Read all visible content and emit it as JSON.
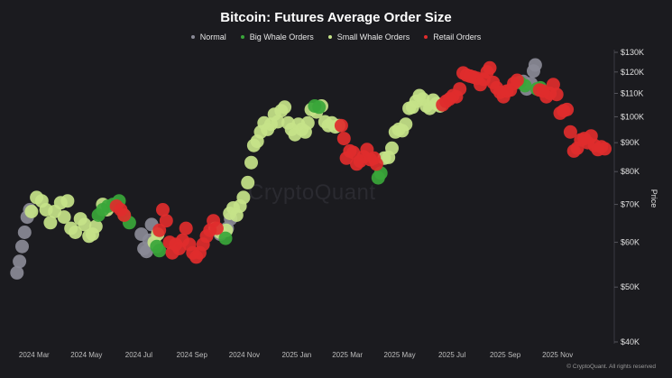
{
  "chart_data": {
    "type": "scatter",
    "title": "Bitcoin: Futures Average Order Size",
    "ylabel": "Price",
    "y_scale": "log",
    "ylim": [
      40000,
      130000
    ],
    "y_ticks": [
      40000,
      50000,
      60000,
      70000,
      80000,
      90000,
      100000,
      110000,
      120000,
      130000
    ],
    "y_tick_labels": [
      "$40K",
      "$50K",
      "$60K",
      "$70K",
      "$80K",
      "$90K",
      "$100K",
      "$110K",
      "$120K",
      "$130K"
    ],
    "xlim": [
      "2024-02-05",
      "2026-01-05"
    ],
    "x_ticks": [
      "2024-03-01",
      "2024-05-01",
      "2024-07-01",
      "2024-09-01",
      "2024-11-01",
      "2025-01-01",
      "2025-03-01",
      "2025-05-01",
      "2025-07-01",
      "2025-09-01",
      "2025-11-01"
    ],
    "x_tick_labels": [
      "2024 Mar",
      "2024 May",
      "2024 Jul",
      "2024 Sep",
      "2024 Nov",
      "2025 Jan",
      "2025 Mar",
      "2025 May",
      "2025 Jul",
      "2025 Sep",
      "2025 Nov"
    ],
    "grid": false,
    "legend_position": "top-center",
    "series": [
      {
        "name": "Normal",
        "color": "#8a8a96",
        "points": [
          [
            "2024-02-10",
            53000
          ],
          [
            "2024-02-13",
            55500
          ],
          [
            "2024-02-16",
            59000
          ],
          [
            "2024-02-19",
            62500
          ],
          [
            "2024-02-22",
            66500
          ],
          [
            "2024-02-25",
            68500
          ],
          [
            "2024-07-04",
            62000
          ],
          [
            "2024-07-07",
            58500
          ],
          [
            "2024-07-10",
            57800
          ],
          [
            "2024-07-13",
            60500
          ],
          [
            "2024-07-16",
            64500
          ],
          [
            "2024-10-04",
            62000
          ],
          [
            "2024-10-08",
            62800
          ],
          [
            "2024-10-12",
            63500
          ],
          [
            "2024-10-16",
            66000
          ],
          [
            "2025-09-22",
            115500
          ],
          [
            "2025-09-26",
            112000
          ],
          [
            "2025-10-01",
            114500
          ],
          [
            "2025-10-04",
            120500
          ],
          [
            "2025-10-06",
            123500
          ]
        ]
      },
      {
        "name": "Big Whale Orders",
        "color": "#3aa63a",
        "points": [
          [
            "2024-05-15",
            67000
          ],
          [
            "2024-05-20",
            68500
          ],
          [
            "2024-05-26",
            69500
          ],
          [
            "2024-06-01",
            70000
          ],
          [
            "2024-06-08",
            71000
          ],
          [
            "2024-06-14",
            67000
          ],
          [
            "2024-06-20",
            65000
          ],
          [
            "2024-07-22",
            59000
          ],
          [
            "2024-07-25",
            58000
          ],
          [
            "2024-10-10",
            61000
          ],
          [
            "2025-01-22",
            104500
          ],
          [
            "2025-01-27",
            104000
          ],
          [
            "2025-04-06",
            78000
          ],
          [
            "2025-04-09",
            79500
          ],
          [
            "2025-09-18",
            115000
          ],
          [
            "2025-09-24",
            113500
          ],
          [
            "2025-10-08",
            112000
          ],
          [
            "2025-10-12",
            112500
          ]
        ]
      },
      {
        "name": "Small Whale Orders",
        "color": "#c5e389",
        "points": [
          [
            "2024-02-27",
            68000
          ],
          [
            "2024-03-04",
            72000
          ],
          [
            "2024-03-10",
            71000
          ],
          [
            "2024-03-15",
            68500
          ],
          [
            "2024-03-20",
            65000
          ],
          [
            "2024-03-25",
            68000
          ],
          [
            "2024-04-01",
            70500
          ],
          [
            "2024-04-05",
            66500
          ],
          [
            "2024-04-09",
            71000
          ],
          [
            "2024-04-13",
            63500
          ],
          [
            "2024-04-18",
            62500
          ],
          [
            "2024-04-24",
            66000
          ],
          [
            "2024-04-29",
            64500
          ],
          [
            "2024-05-04",
            61500
          ],
          [
            "2024-05-08",
            62000
          ],
          [
            "2024-05-12",
            64000
          ],
          [
            "2024-05-20",
            70000
          ],
          [
            "2024-05-25",
            68500
          ],
          [
            "2024-07-19",
            60000
          ],
          [
            "2024-07-23",
            62000
          ],
          [
            "2024-09-28",
            63500
          ],
          [
            "2024-10-04",
            62500
          ],
          [
            "2024-10-11",
            63000
          ],
          [
            "2024-10-15",
            67500
          ],
          [
            "2024-10-19",
            69000
          ],
          [
            "2024-10-23",
            67000
          ],
          [
            "2024-10-27",
            69500
          ],
          [
            "2024-10-31",
            72000
          ],
          [
            "2024-11-05",
            76500
          ],
          [
            "2024-11-09",
            83000
          ],
          [
            "2024-11-12",
            89000
          ],
          [
            "2024-11-16",
            90500
          ],
          [
            "2024-11-20",
            94000
          ],
          [
            "2024-11-24",
            97500
          ],
          [
            "2024-11-28",
            95000
          ],
          [
            "2024-12-02",
            97000
          ],
          [
            "2024-12-06",
            101000
          ],
          [
            "2024-12-10",
            98000
          ],
          [
            "2024-12-14",
            102500
          ],
          [
            "2024-12-18",
            104000
          ],
          [
            "2024-12-22",
            97500
          ],
          [
            "2024-12-26",
            95000
          ],
          [
            "2024-12-30",
            93000
          ],
          [
            "2025-01-03",
            97000
          ],
          [
            "2025-01-07",
            95000
          ],
          [
            "2025-01-11",
            94000
          ],
          [
            "2025-01-14",
            97500
          ],
          [
            "2025-01-18",
            103000
          ],
          [
            "2025-01-24",
            102000
          ],
          [
            "2025-01-30",
            104500
          ],
          [
            "2025-02-03",
            98000
          ],
          [
            "2025-02-07",
            96500
          ],
          [
            "2025-02-11",
            97500
          ],
          [
            "2025-02-15",
            96000
          ],
          [
            "2025-02-19",
            96500
          ],
          [
            "2025-04-13",
            84500
          ],
          [
            "2025-04-18",
            84800
          ],
          [
            "2025-04-22",
            88000
          ],
          [
            "2025-04-26",
            94000
          ],
          [
            "2025-04-30",
            95000
          ],
          [
            "2025-05-04",
            94500
          ],
          [
            "2025-05-08",
            97000
          ],
          [
            "2025-05-12",
            103500
          ],
          [
            "2025-05-16",
            104000
          ],
          [
            "2025-05-20",
            106500
          ],
          [
            "2025-05-24",
            109000
          ],
          [
            "2025-05-28",
            107500
          ],
          [
            "2025-06-01",
            104500
          ],
          [
            "2025-06-05",
            103500
          ],
          [
            "2025-06-09",
            107000
          ],
          [
            "2025-06-13",
            105500
          ],
          [
            "2025-06-17",
            104500
          ]
        ]
      },
      {
        "name": "Retail Orders",
        "color": "#e02c2c",
        "points": [
          [
            "2024-06-05",
            69500
          ],
          [
            "2024-06-10",
            68500
          ],
          [
            "2024-06-14",
            67000
          ],
          [
            "2024-07-25",
            63000
          ],
          [
            "2024-07-29",
            68500
          ],
          [
            "2024-08-02",
            65500
          ],
          [
            "2024-08-06",
            60000
          ],
          [
            "2024-08-09",
            57500
          ],
          [
            "2024-08-13",
            59500
          ],
          [
            "2024-08-17",
            58500
          ],
          [
            "2024-08-21",
            60500
          ],
          [
            "2024-08-25",
            63500
          ],
          [
            "2024-08-29",
            59500
          ],
          [
            "2024-09-02",
            57500
          ],
          [
            "2024-09-06",
            56500
          ],
          [
            "2024-09-10",
            57500
          ],
          [
            "2024-09-14",
            59500
          ],
          [
            "2024-09-18",
            61500
          ],
          [
            "2024-09-22",
            63000
          ],
          [
            "2024-09-26",
            65500
          ],
          [
            "2024-09-30",
            63500
          ],
          [
            "2025-02-22",
            96500
          ],
          [
            "2025-02-25",
            91500
          ],
          [
            "2025-02-28",
            84500
          ],
          [
            "2025-03-04",
            87000
          ],
          [
            "2025-03-08",
            86500
          ],
          [
            "2025-03-12",
            82500
          ],
          [
            "2025-03-16",
            83500
          ],
          [
            "2025-03-20",
            85000
          ],
          [
            "2025-03-24",
            87500
          ],
          [
            "2025-03-28",
            84000
          ],
          [
            "2025-04-01",
            84500
          ],
          [
            "2025-04-04",
            82500
          ],
          [
            "2025-06-20",
            105000
          ],
          [
            "2025-06-24",
            106500
          ],
          [
            "2025-06-28",
            107500
          ],
          [
            "2025-07-02",
            109000
          ],
          [
            "2025-07-06",
            108500
          ],
          [
            "2025-07-10",
            112000
          ],
          [
            "2025-07-14",
            119500
          ],
          [
            "2025-07-18",
            118500
          ],
          [
            "2025-07-22",
            118000
          ],
          [
            "2025-07-26",
            117500
          ],
          [
            "2025-07-30",
            117000
          ],
          [
            "2025-08-03",
            114000
          ],
          [
            "2025-08-07",
            116500
          ],
          [
            "2025-08-11",
            120000
          ],
          [
            "2025-08-14",
            122000
          ],
          [
            "2025-08-18",
            115000
          ],
          [
            "2025-08-22",
            112500
          ],
          [
            "2025-08-26",
            110500
          ],
          [
            "2025-08-30",
            108500
          ],
          [
            "2025-09-03",
            111000
          ],
          [
            "2025-09-07",
            111500
          ],
          [
            "2025-09-11",
            114500
          ],
          [
            "2025-09-15",
            116000
          ],
          [
            "2025-10-11",
            111500
          ],
          [
            "2025-10-15",
            111000
          ],
          [
            "2025-10-19",
            108500
          ],
          [
            "2025-10-23",
            110000
          ],
          [
            "2025-10-27",
            114000
          ],
          [
            "2025-10-31",
            109500
          ],
          [
            "2025-11-04",
            101500
          ],
          [
            "2025-11-08",
            102500
          ],
          [
            "2025-11-12",
            103000
          ],
          [
            "2025-11-16",
            94000
          ],
          [
            "2025-11-20",
            87000
          ],
          [
            "2025-11-24",
            88000
          ],
          [
            "2025-11-28",
            91000
          ],
          [
            "2025-12-02",
            91500
          ],
          [
            "2025-12-06",
            90000
          ],
          [
            "2025-12-10",
            92500
          ],
          [
            "2025-12-14",
            89000
          ],
          [
            "2025-12-18",
            87500
          ],
          [
            "2025-12-22",
            88500
          ],
          [
            "2025-12-26",
            87800
          ]
        ]
      }
    ],
    "watermark": "CryptoQuant",
    "copyright": "© CryptoQuant. All rights reserved"
  }
}
